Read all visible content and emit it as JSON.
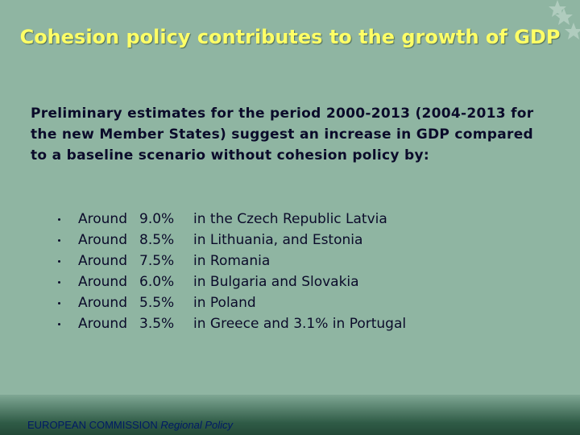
{
  "slide": {
    "title": "Cohesion policy contributes to the growth of GDP",
    "intro": "Preliminary estimates for the period 2000-2013 (2004-2013 for the new Member States) suggest an increase in GDP compared to a baseline scenario without cohesion policy by:",
    "items": [
      {
        "lead": "Around",
        "share": "9.0%",
        "place": "in the Czech Republic Latvia"
      },
      {
        "lead": "Around",
        "share": "8.5%",
        "place": "in Lithuania, and Estonia"
      },
      {
        "lead": "Around",
        "share": "7.5%",
        "place": "in Romania"
      },
      {
        "lead": "Around",
        "share": "6.0%",
        "place": "in Bulgaria and Slovakia"
      },
      {
        "lead": "Around",
        "share": "5.5%",
        "place": "in Poland"
      },
      {
        "lead": "Around",
        "share": "3.5%",
        "place": "in Greece and 3.1% in Portugal"
      }
    ],
    "footer": {
      "organisation": "EUROPEAN COMMISSION",
      "unit": "Regional Policy"
    }
  }
}
